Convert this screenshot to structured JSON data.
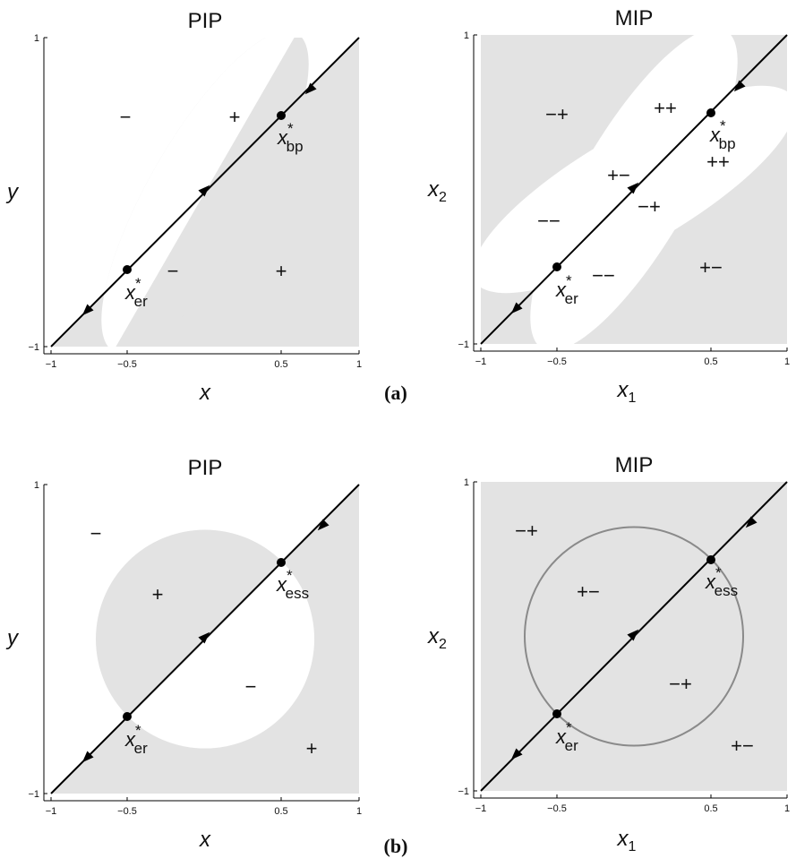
{
  "colors": {
    "light_region": "#e3e3e3",
    "dark_region": "#9a9a9a",
    "background": "#ffffff",
    "line": "#000000",
    "circle_stroke": "#8a8a8a"
  },
  "panels": [
    {
      "label": "(a)",
      "plots": [
        {
          "id": "a-pip",
          "title": "PIP",
          "xlabel": "x",
          "xlabel_sub": "",
          "ylabel": "y",
          "ylabel_sub": "",
          "ticks": {
            "x": [
              "−1",
              "−0.5",
              "0.5",
              "1"
            ],
            "y": [
              "−1",
              "1"
            ]
          },
          "points": [
            {
              "base": "x",
              "sup": "*",
              "sub": "bp",
              "at": [
                0.5,
                0.5
              ]
            },
            {
              "base": "x",
              "sup": "*",
              "sub": "er",
              "at": [
                -0.5,
                -0.5
              ]
            }
          ],
          "signs": [
            {
              "text": "−",
              "at": [
                -0.5,
                0.68
              ]
            },
            {
              "text": "+",
              "at": [
                0.2,
                0.68
              ]
            },
            {
              "text": "−",
              "at": [
                -0.2,
                -0.5
              ]
            },
            {
              "text": "+",
              "at": [
                0.5,
                -0.5
              ]
            }
          ]
        },
        {
          "id": "a-mip",
          "title": "MIP",
          "xlabel": "x",
          "xlabel_sub": "1",
          "ylabel": "x",
          "ylabel_sub": "2",
          "ticks": {
            "x": [
              "−1",
              "−0.5",
              "0.5",
              "1"
            ],
            "y": [
              "−1",
              "1"
            ]
          },
          "points": [
            {
              "base": "x",
              "sup": "*",
              "sub": "bp",
              "at": [
                0.5,
                0.5
              ]
            },
            {
              "base": "x",
              "sup": "*",
              "sub": "er",
              "at": [
                -0.5,
                -0.5
              ]
            }
          ],
          "signs": [
            {
              "text": "−+",
              "at": [
                -0.5,
                0.68
              ]
            },
            {
              "text": "++",
              "at": [
                0.22,
                0.72
              ]
            },
            {
              "text": "++",
              "at": [
                0.63,
                0.3
              ]
            },
            {
              "text": "+−",
              "at": [
                -0.2,
                0.22
              ]
            },
            {
              "text": "−+",
              "at": [
                0.02,
                0.06
              ]
            },
            {
              "text": "−−",
              "at": [
                -0.72,
                0.02
              ]
            },
            {
              "text": "−−",
              "at": [
                -0.3,
                -0.55
              ]
            },
            {
              "text": "+−",
              "at": [
                0.45,
                -0.5
              ]
            }
          ]
        }
      ]
    },
    {
      "label": "(b)",
      "plots": [
        {
          "id": "b-pip",
          "title": "PIP",
          "xlabel": "x",
          "xlabel_sub": "",
          "ylabel": "y",
          "ylabel_sub": "",
          "ticks": {
            "x": [
              "−1",
              "−0.5",
              "0.5",
              "1"
            ],
            "y": [
              "−1",
              "1"
            ]
          },
          "points": [
            {
              "base": "x",
              "sup": "*",
              "sub": "ess",
              "at": [
                0.5,
                0.5
              ]
            },
            {
              "base": "x",
              "sup": "*",
              "sub": "er",
              "at": [
                -0.5,
                -0.5
              ]
            }
          ],
          "signs": [
            {
              "text": "−",
              "at": [
                -0.7,
                0.68
              ]
            },
            {
              "text": "+",
              "at": [
                -0.3,
                0.28
              ]
            },
            {
              "text": "−",
              "at": [
                0.3,
                -0.3
              ]
            },
            {
              "text": "+",
              "at": [
                0.7,
                -0.72
              ]
            }
          ]
        },
        {
          "id": "b-mip",
          "title": "MIP",
          "xlabel": "x",
          "xlabel_sub": "1",
          "ylabel": "x",
          "ylabel_sub": "2",
          "ticks": {
            "x": [
              "−1",
              "−0.5",
              "0.5",
              "1"
            ],
            "y": [
              "−1",
              "1"
            ]
          },
          "points": [
            {
              "base": "x",
              "sup": "*",
              "sub": "ess",
              "at": [
                0.5,
                0.5
              ]
            },
            {
              "base": "x",
              "sup": "*",
              "sub": "er",
              "at": [
                -0.5,
                -0.5
              ]
            }
          ],
          "signs": [
            {
              "text": "−+",
              "at": [
                -0.7,
                0.68
              ]
            },
            {
              "text": "+−",
              "at": [
                -0.3,
                0.28
              ]
            },
            {
              "text": "−+",
              "at": [
                0.3,
                -0.3
              ]
            },
            {
              "text": "+−",
              "at": [
                0.7,
                -0.72
              ]
            }
          ]
        }
      ]
    }
  ]
}
